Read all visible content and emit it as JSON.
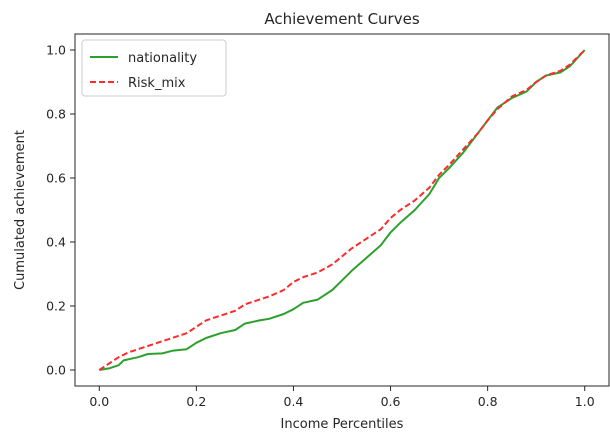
{
  "chart_data": {
    "type": "line",
    "title": "Achievement Curves",
    "xlabel": "Income Percentiles",
    "ylabel": "Cumulated achievement",
    "xlim": [
      -0.05,
      1.05
    ],
    "ylim": [
      -0.05,
      1.05
    ],
    "xticks": [
      0.0,
      0.2,
      0.4,
      0.6,
      0.8,
      1.0
    ],
    "xtick_labels": [
      "0.0",
      "0.2",
      "0.4",
      "0.6",
      "0.8",
      "1.0"
    ],
    "yticks": [
      0.0,
      0.2,
      0.4,
      0.6,
      0.8,
      1.0
    ],
    "ytick_labels": [
      "0.0",
      "0.2",
      "0.4",
      "0.6",
      "0.8",
      "1.0"
    ],
    "grid": false,
    "legend_position": "upper-left",
    "series": [
      {
        "name": "nationality",
        "color": "#2ca02c",
        "style": "solid",
        "x": [
          0.0,
          0.02,
          0.04,
          0.05,
          0.08,
          0.1,
          0.13,
          0.15,
          0.18,
          0.2,
          0.22,
          0.25,
          0.28,
          0.3,
          0.33,
          0.35,
          0.38,
          0.4,
          0.42,
          0.45,
          0.48,
          0.5,
          0.52,
          0.55,
          0.58,
          0.6,
          0.62,
          0.65,
          0.68,
          0.7,
          0.72,
          0.75,
          0.78,
          0.8,
          0.82,
          0.85,
          0.88,
          0.9,
          0.92,
          0.95,
          0.97,
          1.0
        ],
        "y": [
          0.0,
          0.005,
          0.015,
          0.03,
          0.04,
          0.05,
          0.052,
          0.06,
          0.065,
          0.085,
          0.1,
          0.115,
          0.125,
          0.145,
          0.155,
          0.16,
          0.175,
          0.19,
          0.21,
          0.22,
          0.25,
          0.28,
          0.31,
          0.35,
          0.39,
          0.43,
          0.46,
          0.5,
          0.55,
          0.6,
          0.63,
          0.68,
          0.74,
          0.78,
          0.82,
          0.85,
          0.87,
          0.9,
          0.92,
          0.93,
          0.95,
          1.0
        ]
      },
      {
        "name": "Risk_mix",
        "color": "#ff2a2a",
        "style": "dashed",
        "x": [
          0.0,
          0.02,
          0.04,
          0.06,
          0.08,
          0.1,
          0.13,
          0.15,
          0.18,
          0.2,
          0.22,
          0.25,
          0.28,
          0.3,
          0.33,
          0.35,
          0.38,
          0.4,
          0.42,
          0.45,
          0.48,
          0.5,
          0.52,
          0.55,
          0.58,
          0.6,
          0.62,
          0.65,
          0.68,
          0.7,
          0.72,
          0.75,
          0.78,
          0.8,
          0.82,
          0.85,
          0.88,
          0.9,
          0.92,
          0.95,
          0.97,
          1.0
        ],
        "y": [
          0.0,
          0.02,
          0.04,
          0.055,
          0.065,
          0.075,
          0.09,
          0.1,
          0.115,
          0.135,
          0.155,
          0.17,
          0.185,
          0.205,
          0.22,
          0.23,
          0.25,
          0.275,
          0.29,
          0.305,
          0.33,
          0.355,
          0.38,
          0.41,
          0.44,
          0.475,
          0.5,
          0.53,
          0.57,
          0.61,
          0.64,
          0.69,
          0.74,
          0.78,
          0.815,
          0.855,
          0.875,
          0.9,
          0.92,
          0.935,
          0.955,
          1.0
        ]
      }
    ]
  }
}
